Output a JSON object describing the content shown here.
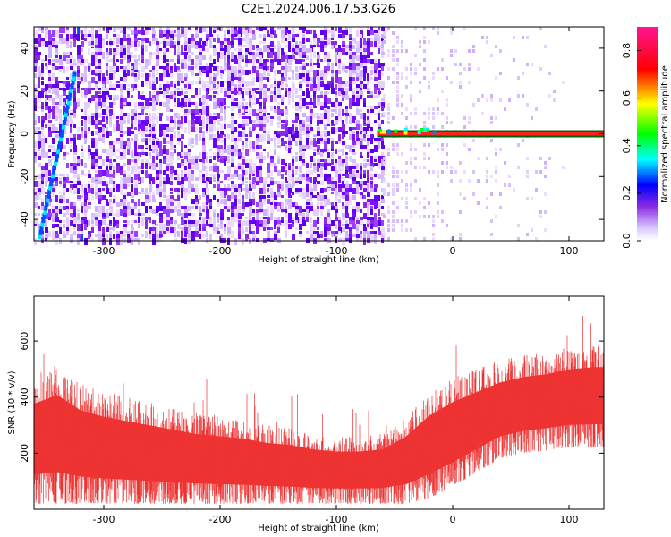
{
  "title": "C2E1.2024.006.17.53.G26",
  "chart_data": [
    {
      "type": "heatmap",
      "xlabel": "Height of straight line (km)",
      "ylabel": "Frequency (Hz)",
      "xlim": [
        -360,
        130
      ],
      "ylim": [
        -50,
        50
      ],
      "xticks": [
        -300,
        -200,
        -100,
        0,
        100
      ],
      "yticks": [
        -40,
        -20,
        0,
        20,
        40
      ],
      "colorbar": {
        "label": "Normalized spectral amplitude",
        "range": [
          0.0,
          0.9
        ],
        "ticks": [
          0.0,
          0.2,
          0.4,
          0.6,
          0.8
        ],
        "colormap": [
          "#ffffff",
          "#e4d0ff",
          "#8a2be2",
          "#0000ff",
          "#00ffff",
          "#00ff00",
          "#ffff00",
          "#ff0000",
          "#ff1493"
        ]
      },
      "features": {
        "diagonal_streak": {
          "x": [
            -355,
            -325
          ],
          "y": [
            -48,
            28
          ]
        },
        "carrier_line": {
          "x_start": -65,
          "x_end": 130,
          "frequency_hz": 0
        },
        "noise_cutoff_km": -60
      }
    },
    {
      "type": "line",
      "xlabel": "Height of straight line (km)",
      "ylabel": "SNR (10 * v/v)",
      "xlim": [
        -360,
        130
      ],
      "ylim": [
        0,
        760
      ],
      "xticks": [
        -300,
        -200,
        -100,
        0,
        100
      ],
      "yticks": [
        200,
        400,
        600
      ],
      "series": [
        {
          "color": "#ee3333",
          "x": [
            -360,
            -340,
            -320,
            -300,
            -280,
            -260,
            -240,
            -220,
            -200,
            -180,
            -160,
            -140,
            -120,
            -100,
            -80,
            -60,
            -40,
            -20,
            0,
            20,
            40,
            60,
            80,
            100,
            120,
            130
          ],
          "low": [
            20,
            20,
            20,
            20,
            20,
            20,
            20,
            20,
            20,
            20,
            20,
            20,
            20,
            20,
            20,
            20,
            20,
            40,
            80,
            130,
            180,
            200,
            210,
            220,
            220,
            220
          ],
          "high": [
            480,
            520,
            450,
            420,
            400,
            380,
            360,
            340,
            330,
            320,
            300,
            290,
            270,
            260,
            260,
            270,
            330,
            420,
            470,
            500,
            530,
            550,
            560,
            580,
            590,
            590
          ]
        }
      ]
    }
  ]
}
